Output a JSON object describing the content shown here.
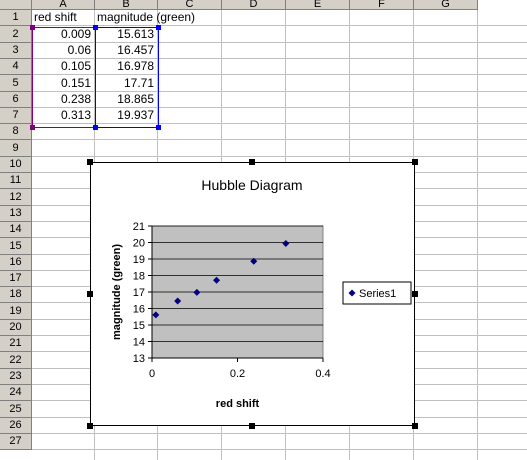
{
  "sheet": {
    "columns": [
      "A",
      "B",
      "C",
      "D",
      "E",
      "F",
      "G"
    ],
    "rows": [
      "1",
      "2",
      "3",
      "4",
      "5",
      "6",
      "7",
      "8",
      "9",
      "10",
      "11",
      "12",
      "13",
      "14",
      "15",
      "16",
      "17",
      "18",
      "19",
      "20",
      "21",
      "22",
      "23",
      "24",
      "25",
      "26",
      "27"
    ],
    "header_row": {
      "a": "red shift",
      "b": "magnitude (green)"
    },
    "data_rows": [
      {
        "a": "0.009",
        "b": "15.613"
      },
      {
        "a": "0.06",
        "b": "16.457"
      },
      {
        "a": "0.105",
        "b": "16.978"
      },
      {
        "a": "0.151",
        "b": "17.71"
      },
      {
        "a": "0.238",
        "b": "18.865"
      },
      {
        "a": "0.313",
        "b": "19.937"
      }
    ],
    "range_colors": {
      "x_range": "#800080",
      "y_range": "#0000ff"
    }
  },
  "chart_data": {
    "type": "scatter",
    "title": "Hubble Diagram",
    "xlabel": "red shift",
    "ylabel": "magnitude (green)",
    "xlim": [
      0,
      0.4
    ],
    "ylim": [
      13,
      21
    ],
    "xticks": [
      "0",
      "0.2",
      "0.4"
    ],
    "yticks": [
      "13",
      "14",
      "15",
      "16",
      "17",
      "18",
      "19",
      "20",
      "21"
    ],
    "grid": "horizontal",
    "plot_area_color": "#c0c0c0",
    "marker_color": "#000080",
    "legend_position": "right",
    "series": [
      {
        "name": "Series1",
        "x": [
          0.009,
          0.06,
          0.105,
          0.151,
          0.238,
          0.313
        ],
        "y": [
          15.613,
          16.457,
          16.978,
          17.71,
          18.865,
          19.937
        ]
      }
    ]
  }
}
